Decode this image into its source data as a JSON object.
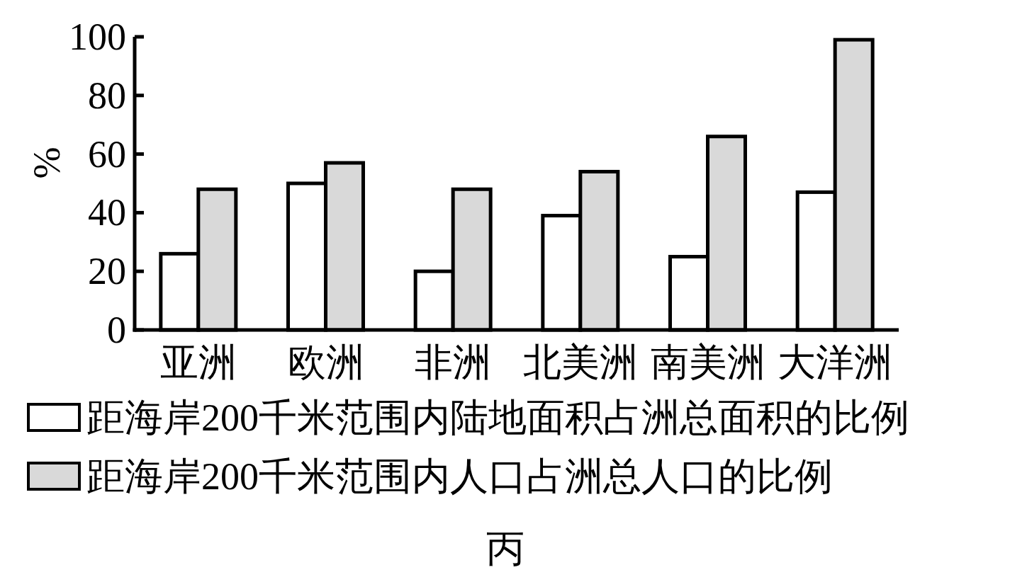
{
  "chart_data": {
    "type": "bar",
    "ylabel": "%",
    "categories": [
      "亚洲",
      "欧洲",
      "非洲",
      "北美洲",
      "南美洲",
      "大洋洲"
    ],
    "series": [
      {
        "name": "距海岸200千米范围内陆地面积占洲总面积的比例",
        "color": "#ffffff",
        "values": [
          26,
          50,
          20,
          39,
          25,
          47
        ]
      },
      {
        "name": "距海岸200千米范围内人口占洲总人口的比例",
        "color": "#d9d9d9",
        "values": [
          48,
          57,
          48,
          54,
          66,
          99
        ]
      }
    ],
    "ylim": [
      0,
      100
    ],
    "yticks": [
      0,
      20,
      40,
      60,
      80,
      100
    ],
    "legend": "bottom",
    "annotations": [
      "丙"
    ]
  }
}
